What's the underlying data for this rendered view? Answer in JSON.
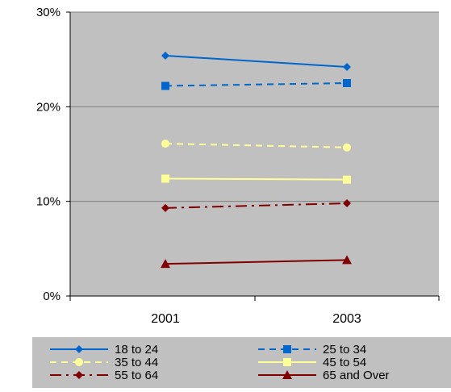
{
  "chart_data": {
    "type": "line",
    "title": "",
    "xlabel": "",
    "ylabel": "",
    "categories": [
      "2001",
      "2003"
    ],
    "ylim": [
      0,
      0.3
    ],
    "y_ticks": [
      0,
      0.1,
      0.2,
      0.3
    ],
    "y_tick_labels": [
      "0%",
      "10%",
      "20%",
      "30%"
    ],
    "grid": true,
    "plot_background": "#c0c0c0",
    "legend_position": "bottom",
    "series": [
      {
        "name": "18 to 24",
        "values": [
          0.254,
          0.242
        ],
        "color": "#0066cc",
        "dash": "solid",
        "marker": "diamond"
      },
      {
        "name": "25 to 34",
        "values": [
          0.222,
          0.225
        ],
        "color": "#0066cc",
        "dash": "dash",
        "marker": "square"
      },
      {
        "name": "35 to 44",
        "values": [
          0.161,
          0.157
        ],
        "color": "#ffff99",
        "dash": "dash",
        "marker": "circle"
      },
      {
        "name": "45 to 54",
        "values": [
          0.124,
          0.123
        ],
        "color": "#ffff99",
        "dash": "solid",
        "marker": "square"
      },
      {
        "name": "55 to 64",
        "values": [
          0.093,
          0.098
        ],
        "color": "#800000",
        "dash": "dashdot",
        "marker": "diamond"
      },
      {
        "name": "65 and Over",
        "values": [
          0.034,
          0.038
        ],
        "color": "#800000",
        "dash": "solid",
        "marker": "triangle"
      }
    ]
  }
}
